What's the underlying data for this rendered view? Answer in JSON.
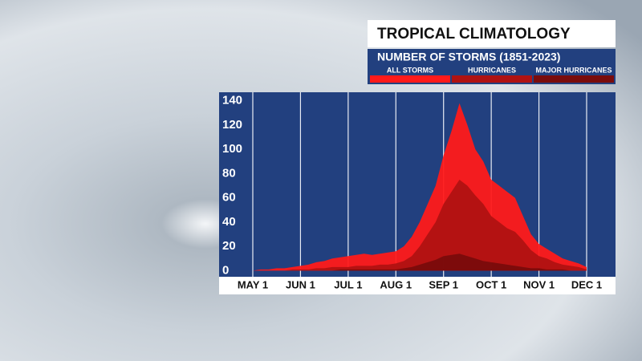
{
  "chart_data": {
    "type": "area",
    "title": "TROPICAL CLIMATOLOGY",
    "subtitle": "NUMBER OF STORMS (1851-2023)",
    "categories": [
      "MAY 1",
      null,
      null,
      null,
      null,
      null,
      "JUN 1",
      null,
      null,
      null,
      null,
      null,
      "JUL 1",
      null,
      null,
      null,
      null,
      null,
      "AUG 1",
      null,
      null,
      null,
      null,
      null,
      "SEP 1",
      null,
      null,
      null,
      null,
      null,
      "OCT 1",
      null,
      null,
      null,
      null,
      null,
      "NOV 1",
      null,
      null,
      null,
      null,
      null,
      "DEC 1"
    ],
    "series": [
      {
        "name": "ALL STORMS",
        "color": "#ff1a1a",
        "values": [
          0,
          1,
          1,
          2,
          2,
          3,
          4,
          5,
          7,
          8,
          10,
          11,
          12,
          13,
          14,
          13,
          14,
          15,
          16,
          20,
          28,
          40,
          55,
          70,
          95,
          115,
          138,
          120,
          100,
          90,
          75,
          70,
          65,
          60,
          45,
          30,
          22,
          18,
          14,
          10,
          8,
          6,
          3
        ]
      },
      {
        "name": "HURRICANES",
        "color": "#b01212",
        "values": [
          0,
          0,
          0,
          0,
          0,
          1,
          1,
          1,
          2,
          2,
          3,
          3,
          3,
          4,
          4,
          4,
          5,
          5,
          6,
          8,
          12,
          20,
          30,
          40,
          55,
          65,
          75,
          70,
          62,
          55,
          45,
          40,
          35,
          32,
          25,
          17,
          12,
          10,
          7,
          5,
          4,
          3,
          1
        ]
      },
      {
        "name": "MAJOR HURRICANES",
        "color": "#7a0c0c",
        "values": [
          0,
          0,
          0,
          0,
          0,
          0,
          0,
          0,
          0,
          0,
          0,
          1,
          1,
          1,
          1,
          1,
          1,
          1,
          1,
          2,
          3,
          5,
          7,
          9,
          12,
          13,
          14,
          12,
          10,
          8,
          7,
          6,
          5,
          4,
          3,
          2,
          2,
          1,
          1,
          1,
          0,
          0,
          0
        ]
      }
    ],
    "ylim": [
      -5,
      147
    ],
    "yticks": [
      0,
      20,
      40,
      60,
      80,
      100,
      120,
      140
    ],
    "x_grid": true,
    "y_grid": false
  }
}
